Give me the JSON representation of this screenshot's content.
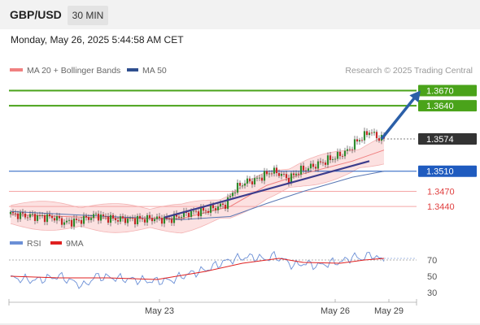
{
  "header": {
    "pair": "GBP/USD",
    "timeframe": "30 MIN"
  },
  "timestamp": "Monday, May 26, 2025 5:44:58 AM CET",
  "legend": {
    "items": [
      {
        "label": "MA 20 + Bollinger Bands",
        "color": "#f08080"
      },
      {
        "label": "MA 50",
        "color": "#2f4f8f"
      }
    ],
    "source": "Research © 2025 Trading Central"
  },
  "rsi_legend": {
    "items": [
      {
        "label": "RSI",
        "color": "#6b8fd6"
      },
      {
        "label": "9MA",
        "color": "#e02020"
      }
    ]
  },
  "chart_data": [
    {
      "type": "candlestick",
      "ylim": [
        1.3395,
        1.3695
      ],
      "levels": [
        {
          "value": 1.367,
          "label": "1.3670",
          "color": "#4aa31a",
          "kind": "resistance"
        },
        {
          "value": 1.364,
          "label": "1.3640",
          "color": "#4aa31a",
          "kind": "resistance"
        },
        {
          "value": 1.3574,
          "label": "1.3574",
          "color": "#333333",
          "kind": "last-price"
        },
        {
          "value": 1.351,
          "label": "1.3510",
          "color": "#1f5bbf",
          "kind": "pivot"
        },
        {
          "value": 1.347,
          "label": "1.3470",
          "color": "#e04040",
          "kind": "support"
        },
        {
          "value": 1.344,
          "label": "1.3440",
          "color": "#e04040",
          "kind": "support"
        }
      ],
      "x_ticks": [
        {
          "label": "May 23",
          "index": 61
        },
        {
          "label": "May 26",
          "index": 133
        },
        {
          "label": "May 29",
          "index": 155
        }
      ],
      "trendline": {
        "from": [
          63,
          1.3418
        ],
        "to": [
          147,
          1.353
        ]
      },
      "projection_arrow": {
        "from": [
          152,
          1.3574
        ],
        "to": [
          168,
          1.367
        ]
      },
      "count": 154,
      "close_path": [
        [
          0,
          1.3425
        ],
        [
          10,
          1.342
        ],
        [
          18,
          1.3418
        ],
        [
          22,
          1.3408
        ],
        [
          28,
          1.3412
        ],
        [
          35,
          1.3422
        ],
        [
          42,
          1.3415
        ],
        [
          50,
          1.3414
        ],
        [
          58,
          1.3416
        ],
        [
          65,
          1.3414
        ],
        [
          72,
          1.3426
        ],
        [
          80,
          1.3432
        ],
        [
          88,
          1.3444
        ],
        [
          92,
          1.3475
        ],
        [
          96,
          1.3488
        ],
        [
          100,
          1.3492
        ],
        [
          104,
          1.3502
        ],
        [
          107,
          1.351
        ],
        [
          110,
          1.3506
        ],
        [
          114,
          1.3494
        ],
        [
          118,
          1.351
        ],
        [
          124,
          1.352
        ],
        [
          130,
          1.3532
        ],
        [
          134,
          1.354
        ],
        [
          138,
          1.355
        ],
        [
          142,
          1.357
        ],
        [
          145,
          1.358
        ],
        [
          147,
          1.359
        ],
        [
          150,
          1.3578
        ],
        [
          153,
          1.3574
        ]
      ],
      "ma20_path": [
        [
          0,
          1.3424
        ],
        [
          40,
          1.3417
        ],
        [
          70,
          1.3416
        ],
        [
          90,
          1.344
        ],
        [
          105,
          1.3482
        ],
        [
          120,
          1.3505
        ],
        [
          140,
          1.353
        ],
        [
          153,
          1.3552
        ]
      ],
      "ma50_path": [
        [
          0,
          1.343
        ],
        [
          40,
          1.342
        ],
        [
          70,
          1.3414
        ],
        [
          90,
          1.342
        ],
        [
          105,
          1.3446
        ],
        [
          120,
          1.347
        ],
        [
          140,
          1.3498
        ],
        [
          153,
          1.351
        ]
      ],
      "band_width": 0.0018
    },
    {
      "type": "line",
      "name": "RSI",
      "ylim": [
        20,
        85
      ],
      "y_ticks": [
        70,
        50,
        30
      ],
      "overbought": 70,
      "rsi_path": [
        [
          0,
          48
        ],
        [
          10,
          45
        ],
        [
          20,
          50
        ],
        [
          25,
          44
        ],
        [
          30,
          38
        ],
        [
          35,
          50
        ],
        [
          42,
          48
        ],
        [
          50,
          46
        ],
        [
          58,
          44
        ],
        [
          66,
          45
        ],
        [
          72,
          52
        ],
        [
          80,
          58
        ],
        [
          86,
          66
        ],
        [
          90,
          70
        ],
        [
          95,
          73
        ],
        [
          100,
          74
        ],
        [
          104,
          71
        ],
        [
          108,
          75
        ],
        [
          112,
          70
        ],
        [
          116,
          63
        ],
        [
          120,
          66
        ],
        [
          126,
          63
        ],
        [
          132,
          67
        ],
        [
          136,
          68
        ],
        [
          140,
          74
        ],
        [
          144,
          72
        ],
        [
          148,
          77
        ],
        [
          151,
          71
        ],
        [
          153,
          70
        ]
      ],
      "ma_path": [
        [
          0,
          50
        ],
        [
          20,
          48
        ],
        [
          40,
          48
        ],
        [
          60,
          46
        ],
        [
          80,
          56
        ],
        [
          95,
          66
        ],
        [
          110,
          72
        ],
        [
          120,
          67
        ],
        [
          135,
          66
        ],
        [
          145,
          70
        ],
        [
          153,
          72
        ]
      ]
    }
  ]
}
